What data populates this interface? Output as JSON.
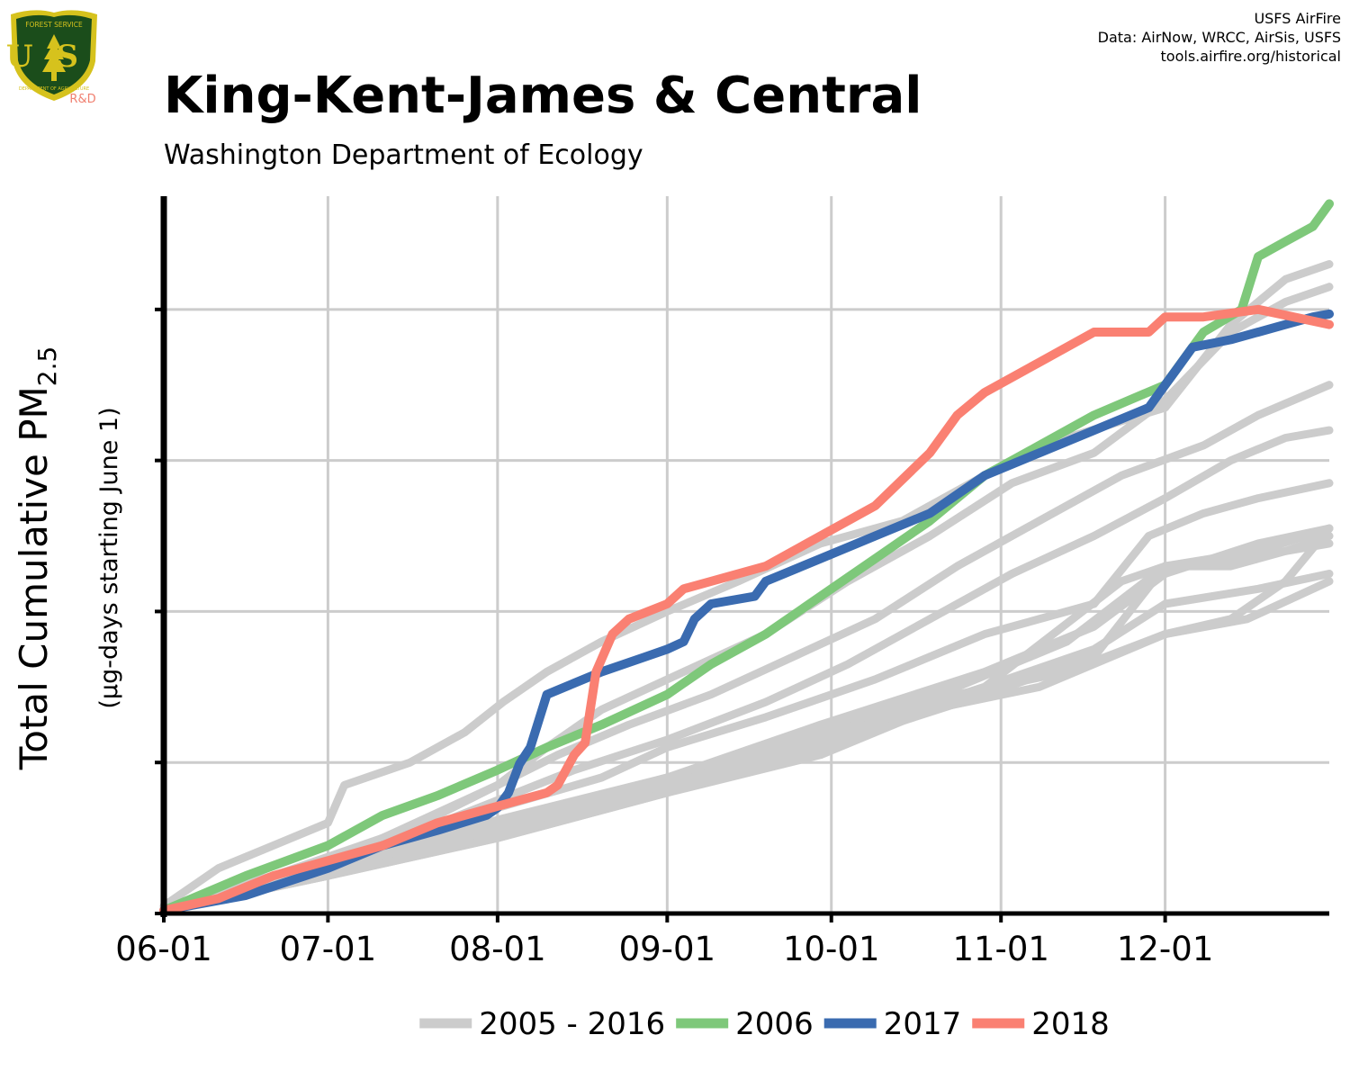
{
  "header": {
    "title": "King-Kent-James & Central",
    "subtitle": "Washington Department of Ecology",
    "source_lines": [
      "USFS AirFire",
      "Data: AirNow, WRCC, AirSis, USFS",
      "tools.airfire.org/historical"
    ]
  },
  "logo": {
    "top_text": "FOREST SERVICE",
    "letters": "US",
    "bottom_text": "DEPARTMENT OF AGRICULTURE",
    "tag": "R&D",
    "colors": {
      "shield": "#1b4d1b",
      "gold": "#d6c21d",
      "tag": "#f08070"
    }
  },
  "chart_data": {
    "type": "line",
    "title": "King-Kent-James & Central",
    "subtitle": "Washington Department of Ecology",
    "ylabel": "Total Cumulative PM2.5",
    "ylabel_sub": "(µg-days starting June 1)",
    "xlabel": "",
    "x_unit": "day of season (June 1 = 0)",
    "x_ticks": [
      {
        "day": 0,
        "label": "06-01"
      },
      {
        "day": 30,
        "label": "07-01"
      },
      {
        "day": 61,
        "label": "08-01"
      },
      {
        "day": 92,
        "label": "09-01"
      },
      {
        "day": 122,
        "label": "10-01"
      },
      {
        "day": 153,
        "label": "11-01"
      },
      {
        "day": 183,
        "label": "12-01"
      }
    ],
    "xlim": [
      0,
      213
    ],
    "ylim": [
      0,
      4.75
    ],
    "y_ticks": [
      0,
      1,
      2,
      3,
      4
    ],
    "y_tick_labels_shown": false,
    "grid": true,
    "legend": {
      "position": "bottom",
      "entries": [
        {
          "label": "2005 - 2016",
          "color": "#cccccc"
        },
        {
          "label": "2006",
          "color": "#7ec87a"
        },
        {
          "label": "2017",
          "color": "#3a6bb0"
        },
        {
          "label": "2018",
          "color": "#fa8072"
        }
      ]
    },
    "background_series_color": "#cccccc",
    "background_series": [
      {
        "x": [
          0,
          10,
          20,
          30,
          33,
          45,
          55,
          62,
          70,
          80,
          92,
          105,
          120,
          135,
          150,
          165,
          183,
          195,
          205,
          213
        ],
        "y": [
          0.05,
          0.3,
          0.45,
          0.6,
          0.85,
          1.0,
          1.2,
          1.4,
          1.6,
          1.8,
          2.0,
          2.2,
          2.45,
          2.6,
          2.9,
          3.15,
          3.35,
          3.9,
          4.2,
          4.3
        ]
      },
      {
        "x": [
          0,
          15,
          30,
          50,
          61,
          70,
          80,
          92,
          110,
          125,
          140,
          155,
          170,
          183,
          195,
          205,
          213
        ],
        "y": [
          0.02,
          0.2,
          0.35,
          0.65,
          0.85,
          1.1,
          1.35,
          1.55,
          1.85,
          2.2,
          2.5,
          2.85,
          3.05,
          3.4,
          3.85,
          4.05,
          4.15
        ]
      },
      {
        "x": [
          0,
          20,
          40,
          61,
          72,
          85,
          100,
          115,
          130,
          145,
          160,
          175,
          190,
          200,
          213
        ],
        "y": [
          0.03,
          0.25,
          0.5,
          0.85,
          1.05,
          1.25,
          1.45,
          1.7,
          1.95,
          2.3,
          2.6,
          2.9,
          3.1,
          3.3,
          3.5
        ]
      },
      {
        "x": [
          0,
          20,
          40,
          61,
          75,
          92,
          110,
          125,
          140,
          155,
          170,
          183,
          195,
          205,
          213
        ],
        "y": [
          0.02,
          0.22,
          0.45,
          0.75,
          0.95,
          1.15,
          1.4,
          1.65,
          1.95,
          2.25,
          2.5,
          2.75,
          3.0,
          3.15,
          3.2
        ]
      },
      {
        "x": [
          0,
          25,
          50,
          61,
          80,
          92,
          110,
          130,
          150,
          170,
          180,
          190,
          200,
          213
        ],
        "y": [
          0.02,
          0.25,
          0.5,
          0.7,
          0.9,
          1.1,
          1.3,
          1.55,
          1.85,
          2.05,
          2.5,
          2.65,
          2.75,
          2.85
        ]
      },
      {
        "x": [
          0,
          30,
          61,
          92,
          120,
          150,
          170,
          183,
          200,
          213
        ],
        "y": [
          0.02,
          0.25,
          0.55,
          0.85,
          1.25,
          1.6,
          1.9,
          2.25,
          2.45,
          2.55
        ]
      },
      {
        "x": [
          0,
          30,
          61,
          92,
          120,
          145,
          165,
          183,
          195,
          205,
          213
        ],
        "y": [
          0.02,
          0.28,
          0.6,
          0.9,
          1.2,
          1.5,
          1.8,
          2.3,
          2.35,
          2.4,
          2.5
        ]
      },
      {
        "x": [
          0,
          30,
          61,
          92,
          120,
          150,
          175,
          183,
          200,
          213
        ],
        "y": [
          0.02,
          0.3,
          0.6,
          0.9,
          1.15,
          1.5,
          2.2,
          2.3,
          2.4,
          2.55
        ]
      },
      {
        "x": [
          0,
          30,
          61,
          92,
          120,
          150,
          170,
          183,
          200,
          213
        ],
        "y": [
          0.02,
          0.28,
          0.55,
          0.85,
          1.15,
          1.5,
          1.75,
          2.05,
          2.15,
          2.25
        ]
      },
      {
        "x": [
          0,
          30,
          61,
          92,
          120,
          150,
          170,
          183,
          195,
          205,
          213
        ],
        "y": [
          0.02,
          0.25,
          0.5,
          0.8,
          1.1,
          1.45,
          1.7,
          2.3,
          2.3,
          2.4,
          2.45
        ]
      },
      {
        "x": [
          0,
          30,
          61,
          92,
          120,
          140,
          160,
          183,
          198,
          213
        ],
        "y": [
          0.02,
          0.25,
          0.5,
          0.8,
          1.05,
          1.35,
          1.5,
          1.85,
          1.95,
          2.2
        ]
      },
      {
        "x": [
          0,
          30,
          61,
          92,
          120,
          145,
          165,
          183,
          195,
          205,
          213
        ],
        "y": [
          0.02,
          0.28,
          0.62,
          0.9,
          1.25,
          1.45,
          1.6,
          1.85,
          1.95,
          2.2,
          2.55
        ]
      }
    ],
    "series": [
      {
        "name": "2006",
        "color": "#7ec87a",
        "x": [
          0,
          15,
          30,
          40,
          50,
          61,
          70,
          80,
          92,
          100,
          110,
          120,
          130,
          140,
          150,
          160,
          170,
          183,
          190,
          197,
          200,
          205,
          210,
          213
        ],
        "y": [
          0.02,
          0.25,
          0.45,
          0.65,
          0.78,
          0.95,
          1.1,
          1.25,
          1.45,
          1.65,
          1.85,
          2.1,
          2.35,
          2.6,
          2.9,
          3.1,
          3.3,
          3.5,
          3.85,
          4.0,
          4.35,
          4.45,
          4.55,
          4.7
        ]
      },
      {
        "name": "2017",
        "color": "#3a6bb0",
        "x": [
          0,
          15,
          30,
          40,
          50,
          59,
          61,
          63,
          65,
          67,
          70,
          80,
          88,
          92,
          95,
          97,
          100,
          108,
          110,
          120,
          130,
          140,
          150,
          160,
          170,
          180,
          183,
          185,
          188,
          195,
          200,
          205,
          210,
          213
        ],
        "y": [
          0.02,
          0.12,
          0.3,
          0.45,
          0.55,
          0.65,
          0.7,
          0.8,
          0.99,
          1.1,
          1.45,
          1.6,
          1.7,
          1.75,
          1.8,
          1.95,
          2.05,
          2.1,
          2.2,
          2.35,
          2.5,
          2.65,
          2.9,
          3.05,
          3.2,
          3.35,
          3.5,
          3.6,
          3.75,
          3.8,
          3.85,
          3.9,
          3.95,
          3.97
        ]
      },
      {
        "name": "2018",
        "color": "#fa8072",
        "x": [
          0,
          10,
          20,
          30,
          40,
          50,
          60,
          70,
          72,
          75,
          77,
          79,
          82,
          85,
          92,
          95,
          100,
          110,
          120,
          130,
          140,
          145,
          150,
          160,
          170,
          180,
          183,
          190,
          200,
          213
        ],
        "y": [
          0.02,
          0.1,
          0.25,
          0.35,
          0.45,
          0.6,
          0.7,
          0.8,
          0.85,
          1.05,
          1.13,
          1.6,
          1.85,
          1.95,
          2.05,
          2.15,
          2.2,
          2.3,
          2.5,
          2.7,
          3.05,
          3.3,
          3.45,
          3.65,
          3.85,
          3.85,
          3.95,
          3.95,
          4.0,
          3.9
        ]
      }
    ]
  }
}
